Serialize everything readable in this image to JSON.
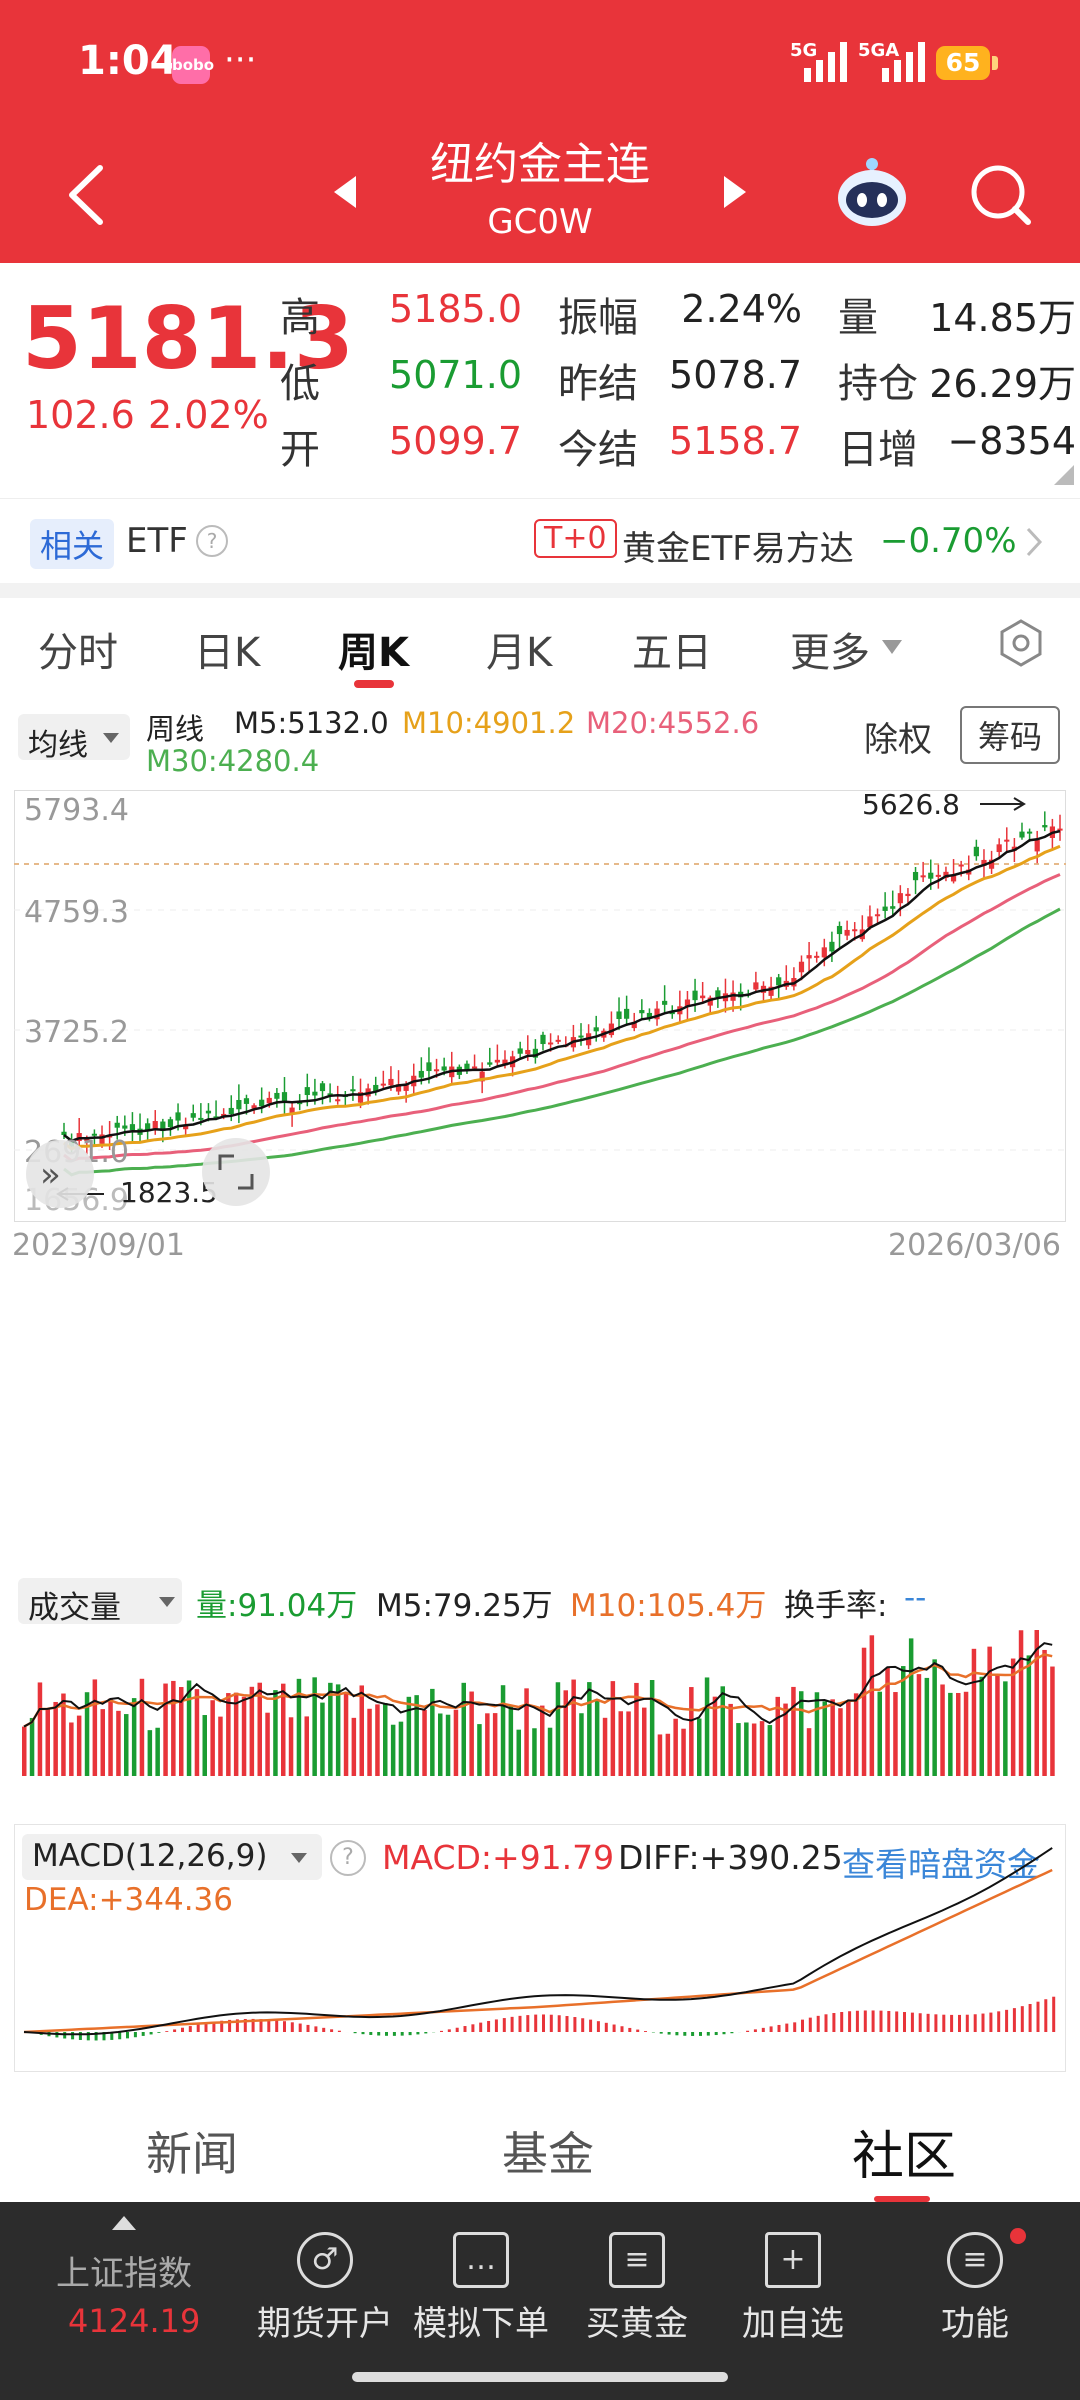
{
  "status": {
    "time": "1:04",
    "app_badge": "bobo",
    "dots": "···",
    "net1": "5G",
    "net2": "5GA",
    "battery": "65"
  },
  "nav": {
    "title": "纽约金主连",
    "subtitle": "GC0W"
  },
  "quote": {
    "price": "5181.3",
    "change": "102.6",
    "change_pct": "2.02%",
    "high_label": "高",
    "high": "5185.0",
    "low_label": "低",
    "low": "5071.0",
    "open_label": "开",
    "open": "5099.7",
    "amp_label": "振幅",
    "amp": "2.24%",
    "prev_label": "昨结",
    "prev": "5078.7",
    "today_label": "今结",
    "today": "5158.7",
    "vol_label": "量",
    "vol": "14.85万",
    "oi_label": "持仓",
    "oi": "26.29万",
    "daily_label": "日增",
    "daily": "−8354"
  },
  "etf": {
    "tag": "相关",
    "label": "ETF",
    "t0": "T+0",
    "name": "黄金ETF易方达",
    "change": "−0.70%"
  },
  "tabs": [
    "分时",
    "日K",
    "周K",
    "月K",
    "五日",
    "更多"
  ],
  "active_tab": "周K",
  "kline": {
    "ma_button": "均线",
    "period": "周线",
    "m5": "M5:5132.0",
    "m10": "M10:4901.2",
    "m20": "M20:4552.6",
    "m30": "M30:4280.4",
    "chuquan": "除权",
    "chouma": "筹码",
    "y_labels": [
      "5793.4",
      "4759.3",
      "3725.2",
      "2691.0",
      "1656.9"
    ],
    "max_label": "5626.8",
    "min_label": "1823.5",
    "date_start": "2023/09/01",
    "date_end": "2026/03/06"
  },
  "volume": {
    "button": "成交量",
    "vol": "量:91.04万",
    "m5": "M5:79.25万",
    "m10": "M10:105.4万",
    "turnover_label": "换手率:",
    "turnover": "--"
  },
  "macd": {
    "button": "MACD(12,26,9)",
    "macd": "MACD:+91.79",
    "diff": "DIFF:+390.25",
    "dea": "DEA:+344.36",
    "link": "查看暗盘资金"
  },
  "bottom_tabs": [
    "新闻",
    "基金",
    "社区"
  ],
  "dock": {
    "index_name": "上证指数",
    "index_value": "4124.19",
    "items": [
      "期货开户",
      "模拟下单",
      "买黄金",
      "加自选",
      "功能"
    ]
  },
  "colors": {
    "up": "#e8343a",
    "down": "#1a9c32",
    "header": "#e8343a",
    "ma10": "#e6a11a",
    "ma20": "#e8607a",
    "ma30": "#4caf50",
    "link": "#3a86d8"
  }
}
